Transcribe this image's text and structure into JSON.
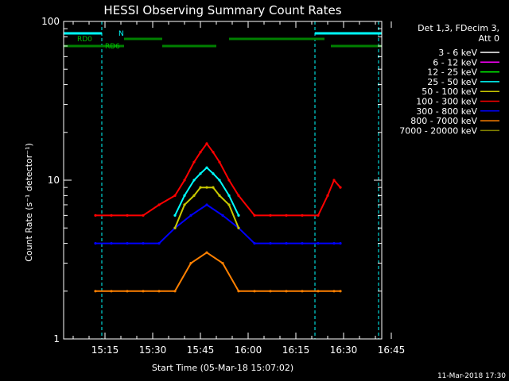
{
  "chart_data": {
    "type": "line",
    "title": "HESSI Observing Summary Count Rates",
    "xlabel": "Start Time (05-Mar-18 15:07:02)",
    "ylabel": "Count Rate (s⁻¹ detector⁻¹)",
    "y_scale": "log",
    "ylim": [
      1,
      100
    ],
    "y_ticks": [
      "1",
      "10",
      "100"
    ],
    "x_range_minutes": [
      -5,
      95
    ],
    "x_ticks": [
      {
        "label": "15:15",
        "minutes": 8
      },
      {
        "label": "15:30",
        "minutes": 23
      },
      {
        "label": "15:45",
        "minutes": 38
      },
      {
        "label": "16:00",
        "minutes": 53
      },
      {
        "label": "16:15",
        "minutes": 68
      },
      {
        "label": "16:30",
        "minutes": 83
      },
      {
        "label": "16:45",
        "minutes": 98
      }
    ],
    "legend": {
      "position": "right",
      "header": [
        "Det 1,3, FDecim 3,",
        "Att 0"
      ],
      "entries": [
        {
          "label": "3 - 6 keV",
          "color": "#ffffff"
        },
        {
          "label": "6 - 12 keV",
          "color": "#ff00ff"
        },
        {
          "label": "12 - 25 keV",
          "color": "#00ff00"
        },
        {
          "label": "25 - 50 keV",
          "color": "#00ffff"
        },
        {
          "label": "50 - 100 keV",
          "color": "#c8c800"
        },
        {
          "label": "100 - 300 keV",
          "color": "#ff0000"
        },
        {
          "label": "300 - 800 keV",
          "color": "#0000ff"
        },
        {
          "label": "800 - 7000 keV",
          "color": "#ff8000"
        },
        {
          "label": "7000 - 20000 keV",
          "color": "#808000"
        }
      ]
    },
    "series": [
      {
        "name": "100 - 300 keV",
        "color": "#ff0000",
        "x": [
          5,
          10,
          15,
          20,
          25,
          30,
          33,
          36,
          38,
          40,
          42,
          44,
          47,
          50,
          55,
          60,
          65,
          70,
          75,
          78,
          80,
          82
        ],
        "y": [
          6,
          6,
          6,
          6,
          7,
          8,
          10,
          13,
          15,
          17,
          15,
          13,
          10,
          8,
          6,
          6,
          6,
          6,
          6,
          8,
          10,
          9
        ]
      },
      {
        "name": "25 - 50 keV",
        "color": "#00ffff",
        "x": [
          30,
          33,
          36,
          38,
          40,
          42,
          44,
          47,
          50
        ],
        "y": [
          6,
          8,
          10,
          11,
          12,
          11,
          10,
          8,
          6
        ]
      },
      {
        "name": "50 - 100 keV",
        "color": "#c8c800",
        "x": [
          30,
          33,
          36,
          38,
          40,
          42,
          44,
          47,
          50
        ],
        "y": [
          5,
          7,
          8,
          9,
          9,
          9,
          8,
          7,
          5
        ]
      },
      {
        "name": "300 - 800 keV",
        "color": "#0000ff",
        "x": [
          5,
          10,
          15,
          20,
          25,
          30,
          35,
          40,
          45,
          50,
          55,
          60,
          65,
          70,
          75,
          80,
          82
        ],
        "y": [
          4,
          4,
          4,
          4,
          4,
          5,
          6,
          7,
          6,
          5,
          4,
          4,
          4,
          4,
          4,
          4,
          4
        ]
      },
      {
        "name": "800 - 7000 keV",
        "color": "#ff8000",
        "x": [
          5,
          10,
          15,
          20,
          25,
          30,
          35,
          40,
          45,
          50,
          55,
          60,
          65,
          70,
          75,
          80,
          82
        ],
        "y": [
          2,
          2,
          2,
          2,
          2,
          2,
          3,
          3.5,
          3,
          2,
          2,
          2,
          2,
          2,
          2,
          2,
          2
        ]
      }
    ],
    "attenuator_bars": {
      "N": [
        [
          -5,
          7
        ],
        [
          74,
          95
        ]
      ],
      "RD0": [
        [
          14,
          26
        ],
        [
          47,
          77
        ]
      ],
      "RD6": [
        [
          -5,
          14
        ],
        [
          26,
          43
        ],
        [
          79,
          95
        ]
      ]
    },
    "bar_labels": {
      "n": "N",
      "rd0": "RD0",
      "rd6": "RD6"
    },
    "dashed_lines_minutes": [
      7,
      74,
      94
    ]
  },
  "footer": {
    "date": "11-Mar-2018 17:30"
  }
}
